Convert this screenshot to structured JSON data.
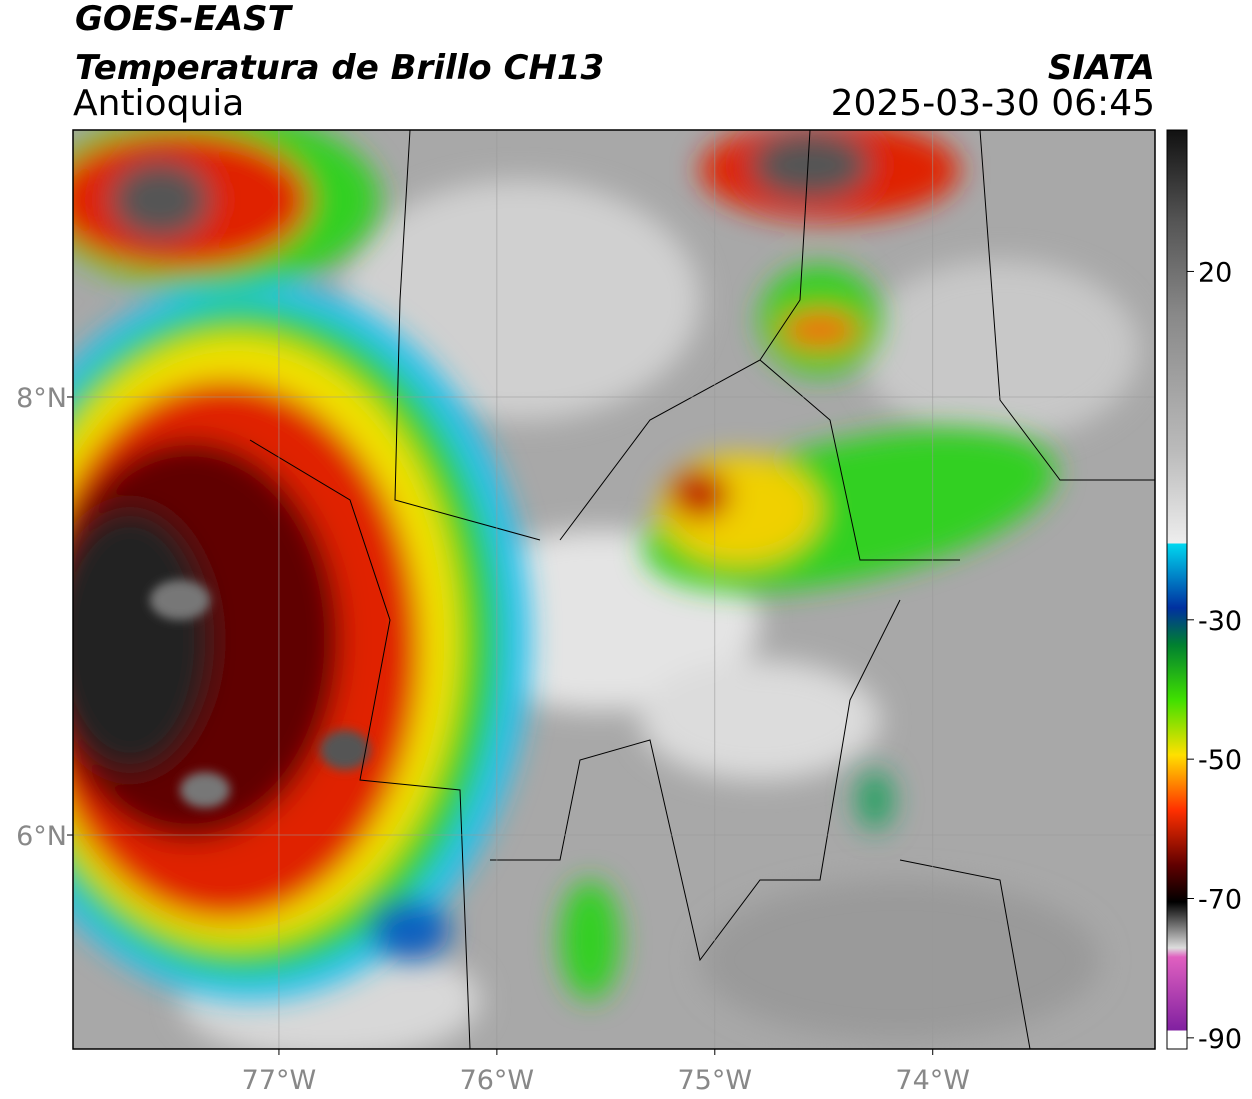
{
  "header": {
    "title": "GOES-EAST",
    "subtitle": "Temperatura de Brillo CH13",
    "region": "Antioquia",
    "source": "SIATA",
    "datetime": "2025-03-30 06:45"
  },
  "map": {
    "lon_range": [
      -77.945,
      -72.98
    ],
    "lat_range": [
      5.023,
      9.219
    ],
    "lat_ticks": [
      {
        "value": 8,
        "label": "8°N"
      },
      {
        "value": 6,
        "label": "6°N"
      }
    ],
    "lon_ticks": [
      {
        "value": -77,
        "label": "77°W"
      },
      {
        "value": -76,
        "label": "76°W"
      },
      {
        "value": -75,
        "label": "75°W"
      },
      {
        "value": -74,
        "label": "74°W"
      }
    ]
  },
  "colorbar": {
    "range": [
      -91.6,
      40.3
    ],
    "ticks": [
      20,
      -30,
      -50,
      -70,
      -90
    ]
  }
}
